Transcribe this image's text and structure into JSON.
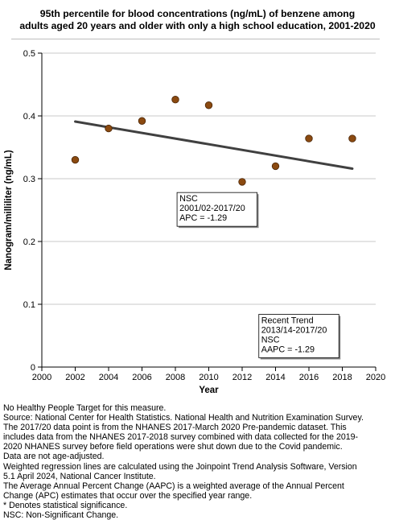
{
  "chart_data": {
    "type": "scatter",
    "title_lines": [
      "95th percentile for blood concentrations (ng/mL) of benzene among",
      "adults aged 20 years and older with only a high school education, 2001-2020"
    ],
    "xlabel": "Year",
    "ylabel": "Nanogram/milliliter (ng/mL)",
    "xlim": [
      2000,
      2020
    ],
    "ylim": [
      0,
      0.5
    ],
    "x_ticks": [
      "2000",
      "2002",
      "2004",
      "2006",
      "2008",
      "2010",
      "2012",
      "2014",
      "2016",
      "2018",
      "2020"
    ],
    "y_ticks": [
      "0",
      "0.1",
      "0.2",
      "0.3",
      "0.4",
      "0.5"
    ],
    "grid": true,
    "points": {
      "x": [
        2002,
        2004,
        2006,
        2008,
        2010,
        2012,
        2014,
        2016,
        2018.6
      ],
      "y": [
        0.33,
        0.38,
        0.392,
        0.426,
        0.417,
        0.295,
        0.32,
        0.364,
        0.364
      ]
    },
    "trend_line": {
      "x": [
        2002,
        2018.6
      ],
      "y": [
        0.391,
        0.316
      ]
    },
    "annotations": [
      {
        "lines": [
          "NSC",
          "2001/02-2017/20",
          "APC = -1.29"
        ],
        "placement": "center"
      },
      {
        "lines": [
          "Recent Trend",
          "2013/14-2017/20",
          "NSC",
          "AAPC = -1.29"
        ],
        "placement": "bottom-right"
      }
    ],
    "colors": {
      "marker": "#8b4a10",
      "marker_edge": "#4a2608",
      "trend": "#404040",
      "grid": "#c8c8c8"
    }
  },
  "notes": [
    "No Healthy People Target for this measure.",
    "Source: National Center for Health Statistics. National Health and Nutrition Examination Survey.",
    "The 2017/20 data point is from the NHANES 2017-March 2020 Pre-pandemic dataset. This",
    "includes data from the NHANES 2017-2018 survey combined with data collected for the 2019-",
    "2020 NHANES survey before field operations were shut down due to the Covid pandemic.",
    "Data are not age-adjusted.",
    "Weighted regression lines are calculated using the Joinpoint Trend Analysis Software, Version",
    "5.1 April 2024, National Cancer Institute.",
    "The Average Annual Percent Change (AAPC) is a weighted average of the Annual Percent",
    "Change (APC) estimates that occur over the specified year range.",
    "* Denotes statistical significance.",
    "NSC: Non-Significant Change."
  ]
}
